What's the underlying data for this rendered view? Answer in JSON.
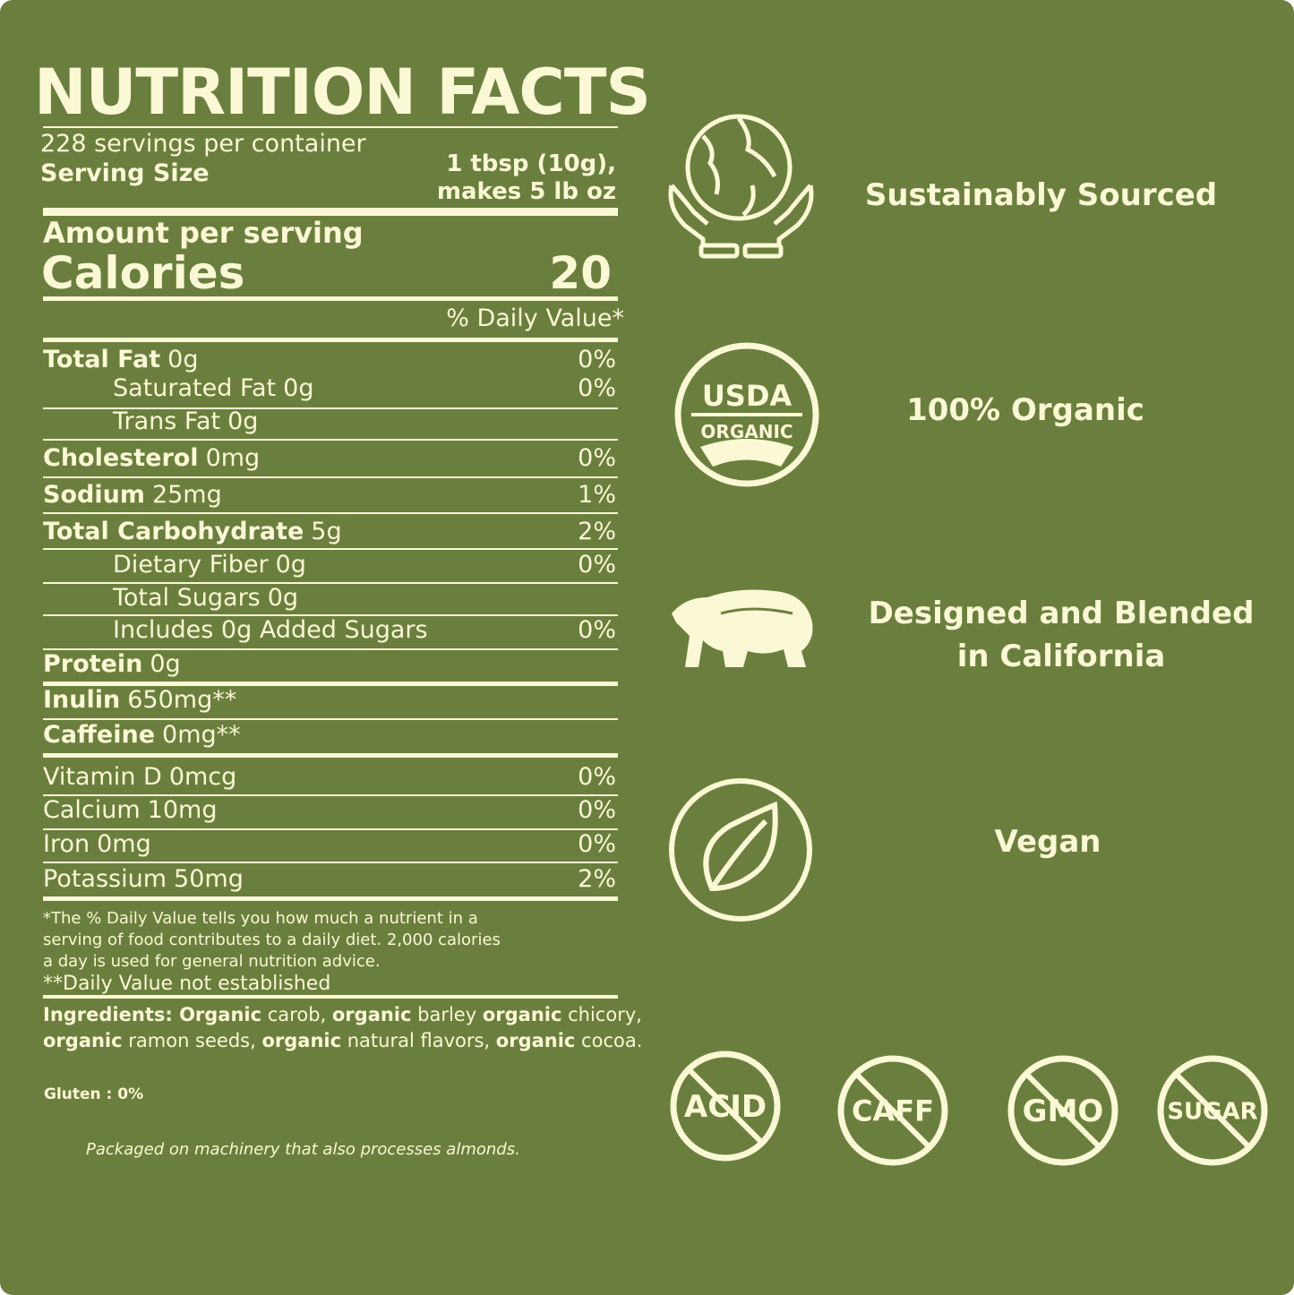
{
  "colors": {
    "background": "#6a7f3d",
    "foreground": "#fbf8d6"
  },
  "title": "NUTRITION FACTS",
  "servings_per_container": "228 servings per container",
  "serving_size_label": "Serving Size",
  "serving_size_value_1": "1 tbsp (10g),",
  "serving_size_value_2": "makes 5 lb oz",
  "amount_per_serving": "Amount per serving",
  "calories_label": "Calories",
  "calories_value": "20",
  "daily_value_header": "% Daily Value*",
  "nutrients": [
    {
      "label": "Total Fat",
      "amount": "0g",
      "dv": "0%",
      "bold": true,
      "indent": 0
    },
    {
      "label": "Saturated Fat",
      "amount": "0g",
      "dv": "0%",
      "bold": false,
      "indent": 1
    },
    {
      "label": "Trans Fat",
      "amount": "0g",
      "dv": "",
      "bold": false,
      "indent": 1
    },
    {
      "label": "Cholesterol",
      "amount": "0mg",
      "dv": "0%",
      "bold": true,
      "indent": 0
    },
    {
      "label": "Sodium",
      "amount": "25mg",
      "dv": "1%",
      "bold": true,
      "indent": 0
    },
    {
      "label": "Total Carbohydrate",
      "amount": "5g",
      "dv": "2%",
      "bold": true,
      "indent": 0
    },
    {
      "label": "Dietary Fiber",
      "amount": "0g",
      "dv": "0%",
      "bold": false,
      "indent": 1
    },
    {
      "label": "Total Sugars",
      "amount": "0g",
      "dv": "",
      "bold": false,
      "indent": 1
    },
    {
      "label": "Includes 0g Added Sugars",
      "amount": "",
      "dv": "0%",
      "bold": false,
      "indent": 1
    },
    {
      "label": "Protein",
      "amount": "0g",
      "dv": "",
      "bold": true,
      "indent": 0
    },
    {
      "label": "Inulin",
      "amount": "650mg**",
      "dv": "",
      "bold": true,
      "indent": 0
    },
    {
      "label": "Caffeine",
      "amount": "0mg**",
      "dv": "",
      "bold": true,
      "indent": 0
    },
    {
      "label": "Vitamin D",
      "amount": "0mcg",
      "dv": "0%",
      "bold": false,
      "indent": 0
    },
    {
      "label": "Calcium",
      "amount": "10mg",
      "dv": "0%",
      "bold": false,
      "indent": 0
    },
    {
      "label": "Iron",
      "amount": "0mg",
      "dv": "0%",
      "bold": false,
      "indent": 0
    },
    {
      "label": "Potassium",
      "amount": "50mg",
      "dv": "2%",
      "bold": false,
      "indent": 0
    }
  ],
  "footnote": [
    "*The % Daily Value tells you how much a nutrient in a",
    "serving of food contributes to a daily diet. 2,000 calories",
    "a day is used for general nutrition advice."
  ],
  "footnote_2": "**Daily Value not established",
  "ingredients": {
    "line1": [
      {
        "t": "Ingredients: Organic",
        "b": true
      },
      {
        "t": " carob, ",
        "b": false
      },
      {
        "t": "organic",
        "b": true
      },
      {
        "t": " barley ",
        "b": false
      },
      {
        "t": "organic",
        "b": true
      },
      {
        "t": " chicory,",
        "b": false
      }
    ],
    "line2": [
      {
        "t": "organic",
        "b": true
      },
      {
        "t": " ramon seeds, ",
        "b": false
      },
      {
        "t": "organic",
        "b": true
      },
      {
        "t": " natural flavors, ",
        "b": false
      },
      {
        "t": "organic",
        "b": true
      },
      {
        "t": " cocoa.",
        "b": false
      }
    ]
  },
  "gluten": "Gluten : 0%",
  "allergen": "Packaged on machinery that also processes almonds.",
  "features": [
    {
      "icon": "globe-hands-icon",
      "label": "Sustainably Sourced"
    },
    {
      "icon": "usda-organic-seal-icon",
      "label": "100% Organic",
      "seal_top": "USDA",
      "seal_bottom": "ORGANIC"
    },
    {
      "icon": "bear-icon",
      "label_1": "Designed and Blended",
      "label_2": "in California"
    },
    {
      "icon": "leaf-icon",
      "label": "Vegan"
    }
  ],
  "free_from": [
    {
      "icon": "no-acid-icon",
      "label": "ACID"
    },
    {
      "icon": "no-caffeine-icon",
      "label": "CAFF"
    },
    {
      "icon": "no-gmo-icon",
      "label": "GMO"
    },
    {
      "icon": "no-sugar-icon",
      "label": "SUGAR"
    }
  ]
}
